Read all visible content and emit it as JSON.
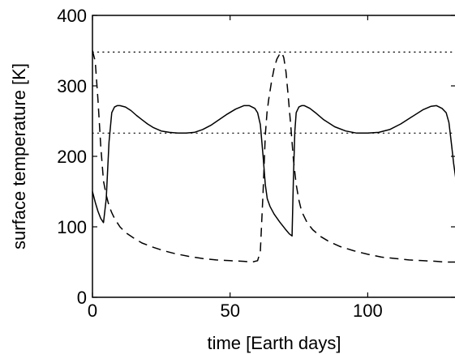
{
  "chart_data": {
    "type": "line",
    "title": "",
    "xlabel": "time [Earth days]",
    "ylabel": "surface temperature [K]",
    "xlim": [
      0,
      132
    ],
    "ylim": [
      0,
      400
    ],
    "x_ticks": [
      0,
      50,
      100
    ],
    "x_tick_labels": [
      "0",
      "50",
      "100"
    ],
    "y_ticks": [
      0,
      100,
      200,
      300,
      400
    ],
    "y_tick_labels": [
      "0",
      "100",
      "200",
      "300",
      "400"
    ],
    "grid": false,
    "legend": "none",
    "reference_lines": [
      {
        "y": 348,
        "style": "dotted"
      },
      {
        "y": 233,
        "style": "dotted"
      }
    ],
    "series": [
      {
        "style": "solid",
        "color": "#000000",
        "x": [
          0,
          1,
          2,
          3,
          4,
          5,
          6,
          7,
          8,
          9,
          10,
          12,
          14,
          16,
          18,
          20,
          22,
          25,
          28,
          31,
          34,
          37,
          40,
          43,
          46,
          49,
          52,
          55,
          57,
          59,
          60,
          61,
          62,
          62.8,
          63.5,
          64.5,
          66,
          68,
          70,
          71.5,
          72.5,
          73,
          73.5,
          74,
          75,
          76,
          77,
          79,
          81,
          84,
          88,
          92,
          96,
          100,
          104,
          108,
          112,
          116,
          120,
          123,
          125,
          127,
          128.5,
          129.5,
          130.5,
          131.2,
          132
        ],
        "y": [
          150,
          135,
          122,
          112,
          106,
          140,
          220,
          262,
          270,
          272,
          272,
          270,
          265,
          258,
          252,
          246,
          241,
          236,
          234,
          233,
          233,
          234,
          238,
          244,
          252,
          260,
          267,
          272,
          272,
          268,
          262,
          245,
          200,
          160,
          140,
          129,
          118,
          107,
          97,
          90,
          87,
          170,
          235,
          262,
          270,
          272,
          272,
          268,
          262,
          252,
          242,
          236,
          233,
          233,
          234,
          238,
          246,
          256,
          266,
          271,
          272,
          268,
          262,
          248,
          215,
          190,
          168
        ]
      },
      {
        "style": "dashed",
        "color": "#000000",
        "x": [
          0,
          1,
          2,
          3,
          4,
          5,
          6,
          7,
          8,
          9,
          10,
          12,
          15,
          18,
          22,
          26,
          30,
          35,
          40,
          45,
          50,
          55,
          58,
          60,
          61,
          62,
          62.8,
          63.4,
          64,
          65,
          66,
          67,
          68,
          68.8,
          69.5,
          70.3,
          71,
          72,
          73,
          74,
          75,
          76,
          78,
          80,
          83,
          86,
          90,
          95,
          100,
          105,
          110,
          115,
          120,
          125,
          128,
          130,
          132
        ],
        "y": [
          350,
          335,
          280,
          215,
          165,
          145,
          130,
          120,
          112,
          106,
          100,
          92,
          84,
          77,
          71,
          66,
          62,
          58,
          55,
          53,
          52,
          51,
          50,
          52,
          65,
          150,
          230,
          262,
          280,
          305,
          325,
          338,
          345,
          347,
          340,
          320,
          290,
          245,
          195,
          160,
          138,
          122,
          106,
          96,
          86,
          79,
          72,
          66,
          61,
          57,
          55,
          53,
          52,
          51,
          50,
          50,
          50
        ]
      }
    ]
  }
}
